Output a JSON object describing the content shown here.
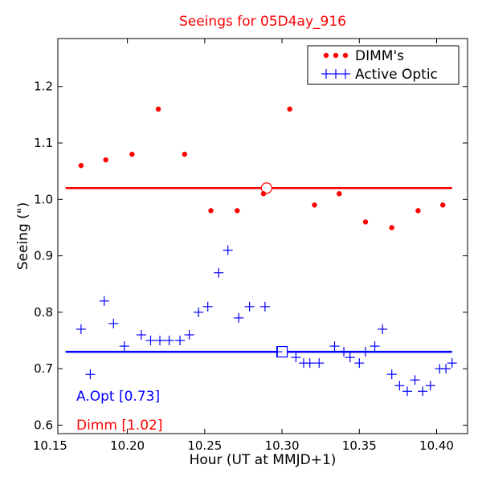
{
  "chart_data": {
    "type": "scatter",
    "title": "Seeings for 05D4ay_916",
    "xlabel": "Hour (UT at MMJD+1)",
    "ylabel": "Seeing (\")",
    "xlim": [
      10.155,
      10.42
    ],
    "ylim": [
      0.585,
      1.285
    ],
    "xticks": [
      10.15,
      10.2,
      10.25,
      10.3,
      10.35,
      10.4
    ],
    "xtick_labels": [
      "10.15",
      "10.20",
      "10.25",
      "10.30",
      "10.35",
      "10.40"
    ],
    "yticks": [
      0.6,
      0.7,
      0.8,
      0.9,
      1.0,
      1.1,
      1.2
    ],
    "ytick_labels": [
      "0.6",
      "0.7",
      "0.8",
      "0.9",
      "1.0",
      "1.1",
      "1.2"
    ],
    "grid": false,
    "legend_position": "top-right",
    "series": [
      {
        "name": "DIMM's",
        "marker": "dot",
        "color": "#ff0000",
        "x": [
          10.17,
          10.186,
          10.203,
          10.22,
          10.237,
          10.254,
          10.271,
          10.288,
          10.305,
          10.321,
          10.337,
          10.354,
          10.371,
          10.388,
          10.404
        ],
        "y": [
          1.06,
          1.07,
          1.08,
          1.16,
          1.08,
          0.98,
          0.98,
          1.01,
          1.16,
          0.99,
          1.01,
          0.96,
          0.95,
          0.98,
          0.99
        ]
      },
      {
        "name": "Active Optic",
        "marker": "plus",
        "color": "#0000ff",
        "x": [
          10.17,
          10.176,
          10.185,
          10.191,
          10.198,
          10.209,
          10.215,
          10.221,
          10.227,
          10.234,
          10.24,
          10.246,
          10.252,
          10.259,
          10.265,
          10.272,
          10.279,
          10.289,
          10.297,
          10.309,
          10.314,
          10.318,
          10.324,
          10.334,
          10.34,
          10.344,
          10.35,
          10.354,
          10.36,
          10.365,
          10.371,
          10.376,
          10.381,
          10.386,
          10.391,
          10.396,
          10.402,
          10.406,
          10.41
        ],
        "y": [
          0.77,
          0.69,
          0.82,
          0.78,
          0.74,
          0.76,
          0.75,
          0.75,
          0.75,
          0.75,
          0.76,
          0.8,
          0.81,
          0.87,
          0.91,
          0.79,
          0.81,
          0.81,
          0.73,
          0.72,
          0.71,
          0.71,
          0.71,
          0.74,
          0.73,
          0.72,
          0.71,
          0.73,
          0.74,
          0.77,
          0.69,
          0.67,
          0.66,
          0.68,
          0.66,
          0.67,
          0.7,
          0.7,
          0.71
        ]
      }
    ],
    "reference_lines": [
      {
        "series": "DIMM's",
        "y": 1.02,
        "x_range": [
          10.16,
          10.41
        ],
        "marker": "circle",
        "marker_x": 10.29,
        "color": "#ff0000"
      },
      {
        "series": "Active Optic",
        "y": 0.73,
        "x_range": [
          10.16,
          10.41
        ],
        "marker": "square",
        "marker_x": 10.3,
        "color": "#0000ff"
      }
    ],
    "annotations": [
      {
        "text": "A.Opt [0.73]",
        "color": "#0000ff",
        "position": "bottom-left-upper"
      },
      {
        "text": "Dimm [1.02]",
        "color": "#ff0000",
        "position": "bottom-left-lower"
      }
    ]
  }
}
